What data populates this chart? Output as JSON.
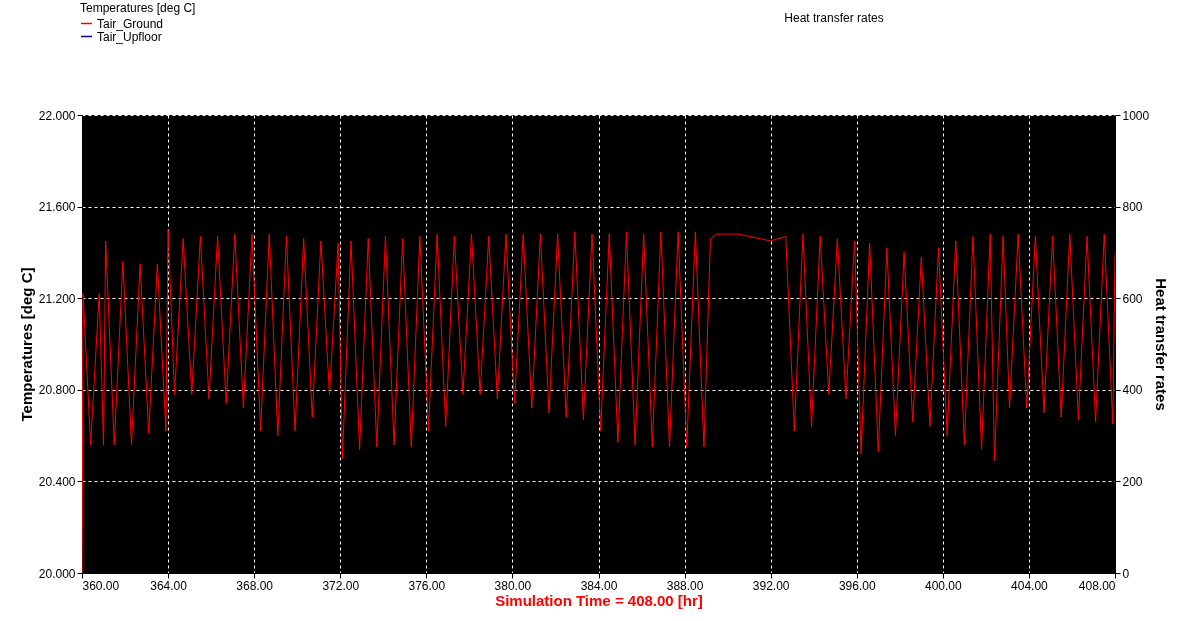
{
  "chart_data": {
    "type": "line",
    "xlabel": "Simulation Time = 408.00 [hr]",
    "ylabel": "Temperatures [deg C]",
    "y2label": "Heat transfer rates",
    "legend_title": "Temperatures [deg C]",
    "legend": "top left",
    "grid": true,
    "line_style": "solid",
    "marker": "none",
    "annotations": [
      "Heat transfer rates"
    ],
    "x": [
      360.0,
      360.05,
      360.4,
      360.8,
      361.0,
      361.1,
      361.5,
      361.9,
      362.3,
      362.7,
      363.1,
      363.5,
      363.9,
      364.0,
      364.3,
      364.7,
      365.1,
      365.5,
      365.9,
      366.3,
      366.7,
      367.1,
      367.5,
      367.9,
      368.3,
      368.7,
      369.1,
      369.5,
      369.9,
      370.3,
      370.7,
      371.1,
      371.5,
      371.9,
      372.1,
      372.5,
      372.9,
      373.3,
      373.7,
      374.1,
      374.5,
      374.9,
      375.3,
      375.7,
      376.1,
      376.5,
      376.9,
      377.3,
      377.7,
      378.1,
      378.5,
      378.9,
      379.3,
      379.7,
      380.1,
      380.5,
      380.9,
      381.3,
      381.7,
      382.1,
      382.5,
      382.9,
      383.3,
      383.7,
      384.1,
      384.5,
      384.9,
      385.3,
      385.7,
      386.1,
      386.5,
      386.9,
      387.3,
      387.7,
      388.1,
      388.5,
      388.9,
      389.2,
      389.5,
      390.5,
      391.5,
      392.0,
      392.7,
      393.1,
      393.5,
      393.9,
      394.3,
      394.7,
      395.1,
      395.5,
      395.9,
      396.2,
      396.6,
      397.0,
      397.4,
      397.8,
      398.2,
      398.6,
      399.0,
      399.4,
      399.8,
      400.2,
      400.6,
      401.0,
      401.4,
      401.8,
      402.2,
      402.4,
      402.8,
      403.1,
      403.5,
      403.9,
      404.3,
      404.7,
      405.1,
      405.5,
      405.9,
      406.3,
      406.7,
      407.1,
      407.5,
      407.9,
      408.0
    ],
    "series": [
      {
        "name": "Tair_Ground",
        "color": "#ff0000",
        "values": [
          20.0,
          21.22,
          20.56,
          21.22,
          20.56,
          21.45,
          20.56,
          21.36,
          20.56,
          21.35,
          20.61,
          21.35,
          20.62,
          21.5,
          20.78,
          21.46,
          20.78,
          21.47,
          20.76,
          21.47,
          20.74,
          21.48,
          20.72,
          21.48,
          20.62,
          21.48,
          20.6,
          21.47,
          20.62,
          21.46,
          20.68,
          21.45,
          20.78,
          21.44,
          20.5,
          21.45,
          20.54,
          21.46,
          20.55,
          21.47,
          20.56,
          21.46,
          20.55,
          21.47,
          20.62,
          21.48,
          20.64,
          21.47,
          20.78,
          21.48,
          20.78,
          21.47,
          20.76,
          21.48,
          20.74,
          21.48,
          20.72,
          21.48,
          20.7,
          21.48,
          20.68,
          21.49,
          20.67,
          21.48,
          20.62,
          21.48,
          20.57,
          21.49,
          20.56,
          21.48,
          20.55,
          21.49,
          20.55,
          21.49,
          20.55,
          21.49,
          20.55,
          21.46,
          21.48,
          21.48,
          21.46,
          21.45,
          21.47,
          20.62,
          21.48,
          20.64,
          21.47,
          20.78,
          21.46,
          20.76,
          21.45,
          20.52,
          21.44,
          20.53,
          21.42,
          20.6,
          21.4,
          20.66,
          21.38,
          20.64,
          21.42,
          20.6,
          21.45,
          20.56,
          21.47,
          20.54,
          21.48,
          20.49,
          21.47,
          20.72,
          21.48,
          20.72,
          21.47,
          20.7,
          21.47,
          20.68,
          21.48,
          20.67,
          21.47,
          20.66,
          21.48,
          20.65,
          21.4
        ]
      },
      {
        "name": "Tair_Upfloor",
        "color": "#000080",
        "values": [
          null,
          null,
          null,
          null,
          null,
          null,
          null,
          null,
          null,
          null,
          null,
          null,
          null,
          null,
          null,
          null,
          null,
          null,
          null,
          null,
          null,
          null,
          null,
          null,
          null,
          null,
          null,
          null,
          null,
          null,
          null,
          null,
          null,
          null,
          null,
          null,
          null,
          null,
          null,
          null,
          null,
          null,
          null,
          null,
          null,
          null,
          null,
          null,
          null,
          null,
          null,
          null,
          null,
          null,
          null,
          null,
          null,
          null,
          null,
          null,
          null,
          null,
          null,
          null,
          null,
          null,
          null,
          null,
          null,
          null,
          null,
          null,
          null,
          null,
          null,
          null,
          null,
          null,
          null,
          null,
          null,
          null,
          null,
          null,
          null,
          null,
          null,
          null,
          null,
          null,
          null,
          null,
          null,
          null,
          null,
          null,
          null,
          null,
          null,
          null,
          null,
          null,
          null,
          null,
          null,
          null,
          null,
          null,
          null,
          null,
          null,
          null,
          null,
          null,
          null,
          null,
          null,
          null,
          null,
          null,
          null,
          null,
          null
        ]
      }
    ],
    "xlim": [
      360,
      408
    ],
    "xticks": [
      {
        "value": 360,
        "label": "360.00"
      },
      {
        "value": 364,
        "label": "364.00"
      },
      {
        "value": 368,
        "label": "368.00"
      },
      {
        "value": 372,
        "label": "372.00"
      },
      {
        "value": 376,
        "label": "376.00"
      },
      {
        "value": 380,
        "label": "380.00"
      },
      {
        "value": 384,
        "label": "384.00"
      },
      {
        "value": 388,
        "label": "388.00"
      },
      {
        "value": 392,
        "label": "392.00"
      },
      {
        "value": 396,
        "label": "396.00"
      },
      {
        "value": 400,
        "label": "400.00"
      },
      {
        "value": 404,
        "label": "404.00"
      },
      {
        "value": 408,
        "label": "408.00"
      }
    ],
    "ylim": [
      20,
      22
    ],
    "yticks": [
      {
        "value": 20,
        "label": "20.000"
      },
      {
        "value": 20.4,
        "label": "20.400"
      },
      {
        "value": 20.8,
        "label": "20.800"
      },
      {
        "value": 21.2,
        "label": "21.200"
      },
      {
        "value": 21.6,
        "label": "21.600"
      },
      {
        "value": 22,
        "label": "22.000"
      }
    ],
    "y2lim": [
      0,
      1000
    ],
    "y2ticks": [
      0,
      200,
      400,
      600,
      800,
      1000
    ]
  }
}
